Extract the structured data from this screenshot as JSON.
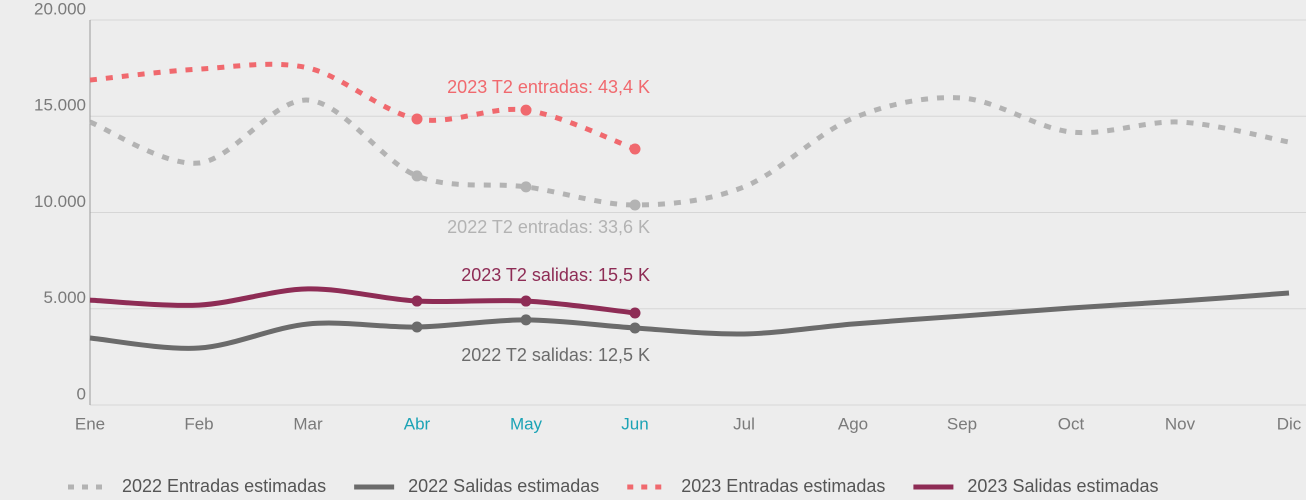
{
  "chart_data": {
    "type": "line",
    "categories": [
      "Ene",
      "Feb",
      "Mar",
      "Abr",
      "May",
      "Jun",
      "Jul",
      "Ago",
      "Sep",
      "Oct",
      "Nov",
      "Dic"
    ],
    "category_colors": [
      "#7a7a7a",
      "#7a7a7a",
      "#7a7a7a",
      "#1ba3b5",
      "#1ba3b5",
      "#1ba3b5",
      "#7a7a7a",
      "#7a7a7a",
      "#7a7a7a",
      "#7a7a7a",
      "#7a7a7a",
      "#7a7a7a"
    ],
    "series": [
      {
        "name": "2022 Entradas estimadas",
        "color": "#b3b3b3",
        "dashed": true,
        "values": [
          14700,
          12570,
          15840,
          11900,
          11330,
          10390,
          11330,
          14900,
          15950,
          14180,
          14700,
          13660
        ]
      },
      {
        "name": "2022 Salidas estimadas",
        "color": "#6b6b6b",
        "dashed": false,
        "values": [
          3480,
          2960,
          4210,
          4050,
          4420,
          4000,
          3690,
          4210,
          4620,
          5040,
          5400,
          5820
        ]
      },
      {
        "name": "2023 Entradas estimadas",
        "color": "#f0696e",
        "dashed": true,
        "values": [
          16880,
          17450,
          17510,
          14860,
          15320,
          13300,
          null,
          null,
          null,
          null,
          null,
          null
        ]
      },
      {
        "name": "2023 Salidas estimadas",
        "color": "#8e2c55",
        "dashed": false,
        "values": [
          5450,
          5190,
          6030,
          5400,
          5400,
          4780,
          null,
          null,
          null,
          null,
          null,
          null
        ]
      }
    ],
    "annotations": [
      {
        "text": "2023 T2 entradas: 43,4 K",
        "color": "#f0696e"
      },
      {
        "text": "2022 T2 entradas: 33,6 K",
        "color": "#b3b3b3"
      },
      {
        "text": "2023 T2 salidas: 15,5 K",
        "color": "#8e2c55"
      },
      {
        "text": "2022 T2 salidas: 12,5 K",
        "color": "#6b6b6b"
      }
    ],
    "ylim": [
      0,
      20000
    ],
    "yticks": [
      0,
      {
        "value": 5000,
        "label": "5.000"
      },
      {
        "value": 10000,
        "label": "10.000"
      },
      {
        "value": 15000,
        "label": "15.000"
      },
      {
        "value": 20000,
        "label": "20.000"
      }
    ],
    "grid": true,
    "legend": "bottom"
  }
}
